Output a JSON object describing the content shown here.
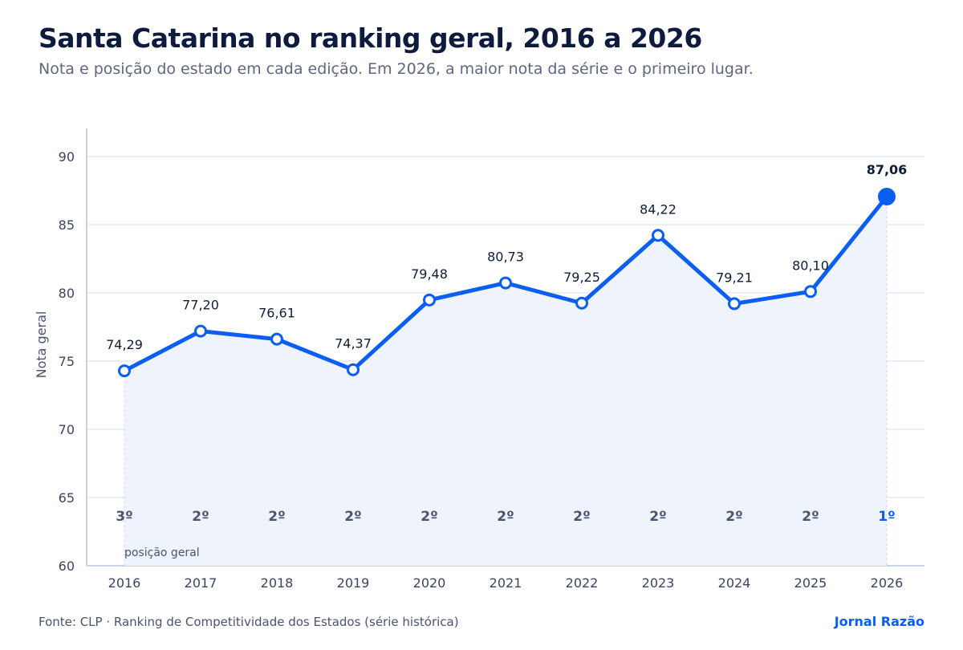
{
  "header": {
    "title": "Santa Catarina no ranking geral, 2016 a 2026",
    "subtitle": "Nota e posição do estado em cada edição. Em 2026, a maior nota da série e o primeiro lugar."
  },
  "footer": {
    "source": "Fonte: CLP · Ranking de Competitividade dos Estados (série histórica)",
    "brand": "Jornal Razão"
  },
  "colors": {
    "accent": "#0a5ef0",
    "area": "#eef3fc",
    "grid": "#e4e9f5",
    "axis": "#b9c3d8",
    "rank": "#4a5370",
    "text": "#0f1d3a",
    "tick": "#3b4560"
  },
  "chart_data": {
    "type": "line",
    "title": "Santa Catarina no ranking geral, 2016 a 2026",
    "xlabel": "",
    "ylabel": "Nota geral",
    "ylim": [
      60,
      90
    ],
    "yticks": [
      60,
      65,
      70,
      75,
      80,
      85,
      90
    ],
    "grid": true,
    "area_fill": true,
    "x": [
      "2016",
      "2017",
      "2018",
      "2019",
      "2020",
      "2021",
      "2022",
      "2023",
      "2024",
      "2025",
      "2026"
    ],
    "series": [
      {
        "values": [
          74.29,
          77.2,
          76.61,
          74.37,
          79.48,
          80.73,
          79.25,
          84.22,
          79.21,
          80.1,
          87.06
        ],
        "labels": [
          "74,29",
          "77,20",
          "76,61",
          "74,37",
          "79,48",
          "80,73",
          "79,25",
          "84,22",
          "79,21",
          "80,10",
          "87,06"
        ]
      }
    ],
    "rank_caption": "posição geral",
    "ranks": [
      "3º",
      "2º",
      "2º",
      "2º",
      "2º",
      "2º",
      "2º",
      "2º",
      "2º",
      "2º",
      "1º"
    ],
    "highlight_index": 10
  }
}
